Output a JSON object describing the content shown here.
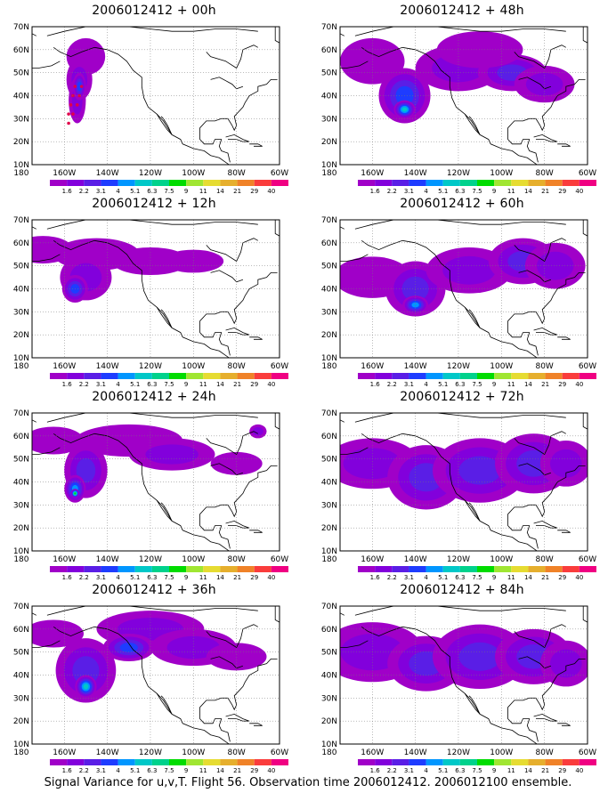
{
  "panels": [
    {
      "title": "2006012412 + 00h",
      "stage": 0
    },
    {
      "title": "2006012412 + 48h",
      "stage": 4
    },
    {
      "title": "2006012412 + 12h",
      "stage": 1
    },
    {
      "title": "2006012412 + 60h",
      "stage": 5
    },
    {
      "title": "2006012412 + 24h",
      "stage": 2
    },
    {
      "title": "2006012412 + 72h",
      "stage": 6
    },
    {
      "title": "2006012412 + 36h",
      "stage": 3
    },
    {
      "title": "2006012412 + 84h",
      "stage": 7
    }
  ],
  "lat_labels": [
    "70N",
    "60N",
    "50N",
    "40N",
    "30N",
    "20N",
    "10N"
  ],
  "lon_labels": [
    "180",
    "160W",
    "140W",
    "120W",
    "100W",
    "80W",
    "60W"
  ],
  "colorbar": {
    "labels": [
      "1.6",
      "2.2",
      "3.1",
      "4",
      "5.1",
      "6.3",
      "7.5",
      "9",
      "11",
      "14",
      "21",
      "29",
      "40"
    ],
    "colors": [
      "#a000c8",
      "#8200dc",
      "#5a1ee6",
      "#1e3cff",
      "#0096ff",
      "#00c8c8",
      "#00d28c",
      "#00dc00",
      "#a0e632",
      "#e6dc32",
      "#e6af2d",
      "#f08228",
      "#fa3c3c",
      "#f00082"
    ]
  },
  "footer": "Signal Variance for u,v,T. Flight 56. Observation time 2006012412. 2006012100 ensemble."
}
